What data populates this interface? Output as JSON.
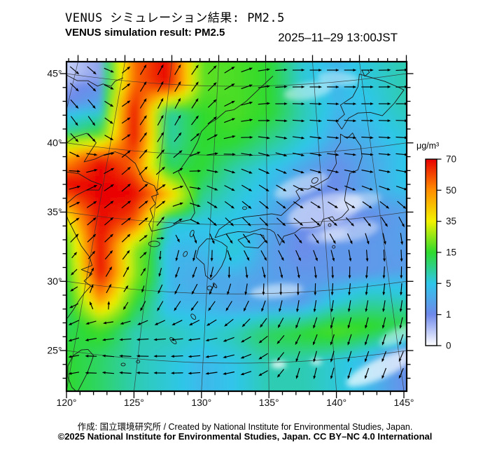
{
  "header": {
    "title_jp": "VENUS シミュレーション結果: PM2.5",
    "title_en": "VENUS simulation result: PM2.5",
    "timestamp": "2025–11–29 13:00JST"
  },
  "axes": {
    "lon_ticks": [
      "120°",
      "125°",
      "130°",
      "135°",
      "140°",
      "145°"
    ],
    "lat_ticks": [
      "45°",
      "40°",
      "35°",
      "30°",
      "25°"
    ]
  },
  "colorbar": {
    "unit": "μg/m³",
    "levels": [
      "0",
      "1",
      "5",
      "15",
      "35",
      "50",
      "70"
    ],
    "colors": [
      "#ffffff",
      "#6f89ea",
      "#2fc6ea",
      "#2eda2e",
      "#f2f200",
      "#ff8e00",
      "#e80000"
    ]
  },
  "footer": {
    "credit": "作成: 国立環境研究所 / Created by National Institute for Environmental Studies, Japan.",
    "license": "©2025 National Institute for Environmental Studies, Japan. CC BY–NC 4.0 International"
  },
  "chart_data": {
    "type": "heatmap",
    "variable": "PM2.5 surface concentration",
    "unit": "μg/m³",
    "timestamp": "2025-11-29 13:00 JST",
    "lon_range": [
      120,
      145
    ],
    "lat_range": [
      25,
      45
    ],
    "levels": [
      0,
      1,
      5,
      15,
      35,
      50,
      70
    ],
    "level_colors": [
      "#ffffff",
      "#6f89ea",
      "#2fc6ea",
      "#2eda2e",
      "#f2f200",
      "#ff8e00",
      "#e80000"
    ],
    "grid_lons": [
      120,
      122.5,
      125,
      127.5,
      130,
      132.5,
      135,
      137.5,
      140,
      142.5,
      145
    ],
    "grid_lats": [
      45,
      43,
      41,
      39,
      37,
      35,
      33,
      31,
      29,
      27,
      25
    ],
    "pm25": [
      [
        0.4,
        0.8,
        55,
        70,
        20,
        18,
        15,
        6,
        4,
        6,
        8
      ],
      [
        1,
        3,
        70,
        8,
        15,
        18,
        15,
        8,
        4,
        5,
        8
      ],
      [
        8,
        15,
        70,
        8,
        15,
        15,
        10,
        6,
        3,
        4,
        6
      ],
      [
        45,
        70,
        55,
        12,
        15,
        8,
        5,
        3,
        1.5,
        3,
        5
      ],
      [
        70,
        70,
        70,
        45,
        10,
        6,
        4,
        1.5,
        1.2,
        3,
        5
      ],
      [
        40,
        70,
        60,
        6,
        5,
        5,
        3,
        1.2,
        1,
        1.5,
        2.5
      ],
      [
        20,
        70,
        25,
        4,
        4,
        6,
        2.5,
        1.2,
        2,
        2,
        2.5
      ],
      [
        15,
        70,
        25,
        4,
        3,
        3,
        2.5,
        2,
        2,
        2,
        2.2
      ],
      [
        12,
        50,
        15,
        4,
        4,
        3,
        3,
        2.5,
        6,
        8,
        6
      ],
      [
        12,
        18,
        8,
        8,
        6,
        8,
        13,
        15,
        18,
        16,
        13
      ],
      [
        15,
        12,
        8,
        6,
        4,
        5,
        8,
        8,
        6,
        4,
        1.5
      ]
    ],
    "wind": {
      "type": "vectors",
      "u_east": [
        [
          0.7,
          0.75,
          0.5,
          0.45,
          0.6,
          0.9,
          1,
          1,
          1,
          1,
          1
        ],
        [
          0.65,
          0.6,
          0.55,
          0.4,
          0.55,
          0.95,
          1,
          1,
          1,
          1,
          1
        ],
        [
          0.55,
          0.5,
          0.6,
          0.5,
          0.8,
          1,
          0.95,
          1,
          1,
          1,
          1
        ],
        [
          0.8,
          0.9,
          0.65,
          0.7,
          0.95,
          0.9,
          0.9,
          0.95,
          1,
          1,
          1
        ],
        [
          1,
          0.8,
          0.7,
          0.85,
          0.9,
          0.8,
          0.8,
          0.85,
          0.9,
          0.9,
          0.95
        ],
        [
          0.85,
          0.7,
          0.8,
          0.55,
          0.7,
          0.65,
          0.7,
          0.75,
          0.7,
          0.65,
          0.6
        ],
        [
          0.6,
          0.7,
          0.6,
          -0.2,
          -0.2,
          0.45,
          0.5,
          0.45,
          0.3,
          0.15,
          0.1
        ],
        [
          -0.5,
          0.5,
          0.4,
          -0.3,
          -0.4,
          -0.1,
          0.15,
          0.1,
          0,
          -0.1,
          0
        ],
        [
          -0.6,
          0.4,
          -0.3,
          -0.5,
          -0.6,
          -0.5,
          -0.3,
          -0.15,
          -0.15,
          -0.15,
          -0.1
        ],
        [
          -0.8,
          -0.9,
          -1,
          -1,
          -1,
          -0.85,
          -0.65,
          -0.4,
          -0.3,
          -0.25,
          -0.2
        ],
        [
          -0.7,
          -0.95,
          -1,
          -1,
          -1,
          -0.9,
          -0.6,
          -0.2,
          -0.25,
          -0.3,
          -0.35
        ]
      ],
      "v_north": [
        [
          -0.6,
          -0.65,
          0.8,
          0.85,
          0.8,
          0.45,
          0.1,
          0,
          0,
          0,
          0.05
        ],
        [
          -0.7,
          -0.75,
          0.75,
          0.9,
          0.8,
          0.3,
          0,
          -0.05,
          -0.05,
          0,
          0
        ],
        [
          -0.8,
          -0.8,
          0.75,
          0.8,
          0.55,
          0.1,
          -0.2,
          -0.15,
          -0.1,
          -0.05,
          -0.05
        ],
        [
          -0.5,
          0.3,
          0.7,
          0.65,
          -0.1,
          -0.3,
          -0.4,
          -0.25,
          -0.15,
          -0.1,
          -0.1
        ],
        [
          0.15,
          0.5,
          0.65,
          0.45,
          -0.4,
          -0.55,
          -0.6,
          -0.5,
          -0.4,
          -0.35,
          -0.25
        ],
        [
          0.45,
          0.65,
          0.55,
          0.8,
          -0.65,
          -0.7,
          -0.7,
          -0.6,
          -0.65,
          -0.7,
          -0.75
        ],
        [
          0.7,
          0.65,
          0.7,
          -0.85,
          -0.9,
          -0.8,
          -0.8,
          -0.85,
          -0.9,
          -0.95,
          -1
        ],
        [
          -0.6,
          0.8,
          0.85,
          -0.8,
          -0.9,
          -0.95,
          -0.95,
          -1,
          -1,
          -1,
          -1
        ],
        [
          -0.5,
          0.85,
          -0.8,
          -0.8,
          -0.75,
          -0.8,
          -0.9,
          -1,
          -1,
          -0.95,
          -1
        ],
        [
          -0.4,
          -0.3,
          -0.1,
          -0.1,
          -0.15,
          -0.4,
          -0.6,
          -0.8,
          -0.85,
          -0.85,
          -0.9
        ],
        [
          -0.2,
          0.1,
          0.05,
          0,
          -0.1,
          -0.2,
          -0.4,
          -0.9,
          -0.9,
          -0.85,
          -0.8
        ]
      ]
    }
  }
}
